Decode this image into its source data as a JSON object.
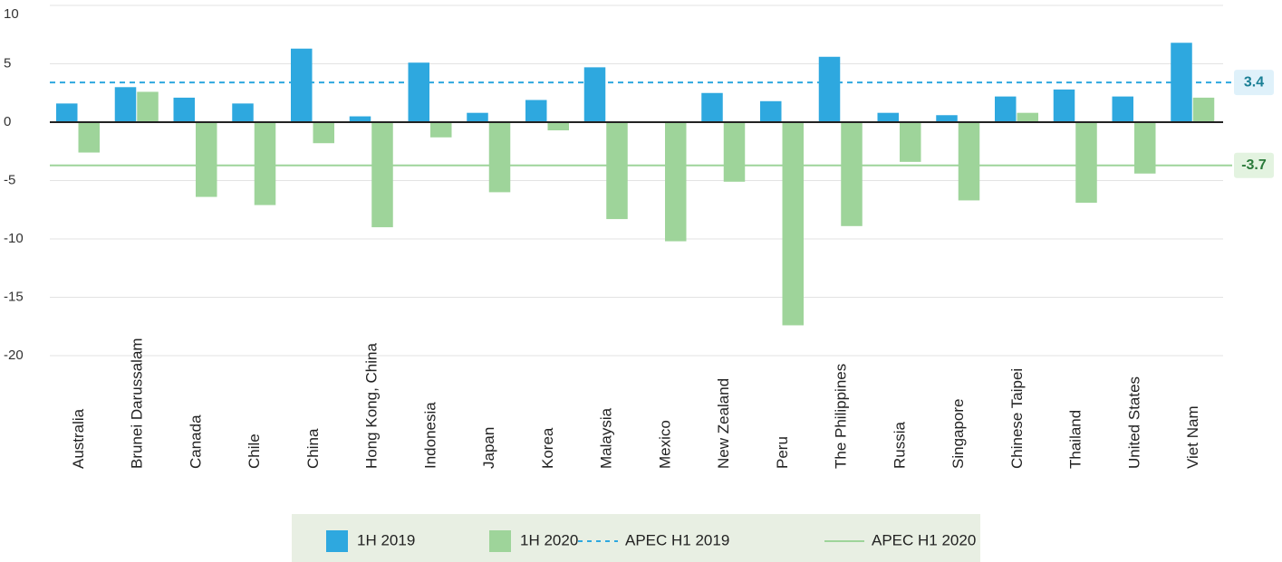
{
  "chart_data": {
    "type": "bar",
    "categories": [
      "Australia",
      "Brunei Darussalam",
      "Canada",
      "Chile",
      "China",
      "Hong Kong, China",
      "Indonesia",
      "Japan",
      "Korea",
      "Malaysia",
      "Mexico",
      "New Zealand",
      "Peru",
      "The Philippines",
      "Russia",
      "Singapore",
      "Chinese Taipei",
      "Thailand",
      "United States",
      "Viet Nam"
    ],
    "series": [
      {
        "name": "1H 2019",
        "color": "#2ea8df",
        "values": [
          1.6,
          3.0,
          2.1,
          1.6,
          6.3,
          0.5,
          5.1,
          0.8,
          1.9,
          4.7,
          0,
          2.5,
          1.8,
          5.6,
          0.8,
          0.6,
          2.2,
          2.8,
          2.2,
          6.8
        ]
      },
      {
        "name": "1H 2020",
        "color": "#9ed49a",
        "values": [
          -2.6,
          2.6,
          -6.4,
          -7.1,
          -1.8,
          -9.0,
          -1.3,
          -6.0,
          -0.7,
          -8.3,
          -10.2,
          -5.1,
          -17.4,
          -8.9,
          -3.4,
          -6.7,
          0.8,
          -6.9,
          -4.4,
          2.1
        ]
      }
    ],
    "reference_lines": [
      {
        "name": "APEC H1 2019",
        "value": 3.4,
        "color": "#2ea8df",
        "style": "dashed",
        "label_bg": "#dff1fa",
        "label_color": "#1a7f95"
      },
      {
        "name": "APEC H1 2020",
        "value": -3.7,
        "color": "#9ed49a",
        "style": "solid",
        "label_bg": "#e3f3e0",
        "label_color": "#2a7a3a"
      }
    ],
    "ylim": [
      -20,
      10
    ],
    "yticks": [
      -20,
      -15,
      -10,
      -5,
      0,
      5,
      10
    ],
    "grid": true
  }
}
